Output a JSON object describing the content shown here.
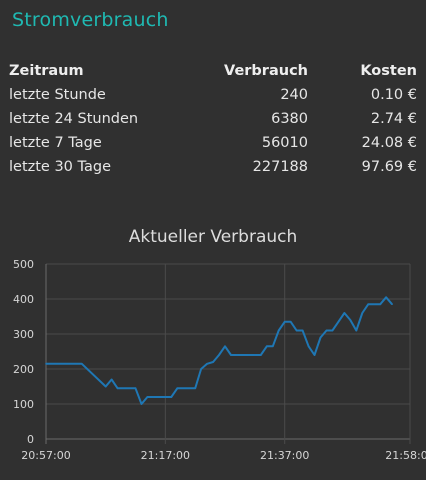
{
  "header": {
    "title": "Stromverbrauch"
  },
  "table": {
    "columns": [
      "Zeitraum",
      "Verbrauch",
      "Kosten"
    ],
    "rows": [
      [
        "letzte Stunde",
        "240",
        "0.10 €"
      ],
      [
        "letzte 24 Stunden",
        "6380",
        "2.74 €"
      ],
      [
        "letzte 7 Tage",
        "56010",
        "24.08 €"
      ],
      [
        "letzte 30 Tage",
        "227188",
        "97.69 €"
      ]
    ]
  },
  "chart_data": {
    "type": "line",
    "title": "Aktueller Verbrauch",
    "xlabel": "",
    "ylabel": "",
    "x_ticks": [
      "20:57:00",
      "21:17:00",
      "21:37:00",
      "21:58:00"
    ],
    "x_tick_minutes": [
      0,
      20,
      40,
      61
    ],
    "y_ticks": [
      0,
      100,
      200,
      300,
      400,
      500
    ],
    "ylim": [
      0,
      500
    ],
    "xlim_minutes": [
      0,
      61
    ],
    "grid": true,
    "line_color": "#1f77b4",
    "series": [
      {
        "x_minutes": [
          0,
          6,
          10,
          11,
          12,
          13,
          14,
          15,
          16,
          17,
          18,
          20,
          21,
          22,
          25,
          26,
          27,
          28,
          29,
          30,
          31,
          32,
          34,
          35,
          36,
          37,
          38,
          39,
          40,
          41,
          42,
          43,
          44,
          45,
          46,
          47,
          48,
          49,
          50,
          51,
          52,
          53,
          54,
          55,
          56,
          57,
          58
        ],
        "values": [
          215,
          215,
          150,
          170,
          145,
          145,
          145,
          145,
          100,
          120,
          120,
          120,
          120,
          145,
          145,
          200,
          215,
          220,
          240,
          265,
          240,
          240,
          240,
          240,
          240,
          265,
          265,
          310,
          335,
          335,
          310,
          310,
          265,
          240,
          290,
          310,
          310,
          335,
          360,
          340,
          310,
          360,
          385,
          385,
          385,
          405,
          385
        ]
      }
    ]
  }
}
